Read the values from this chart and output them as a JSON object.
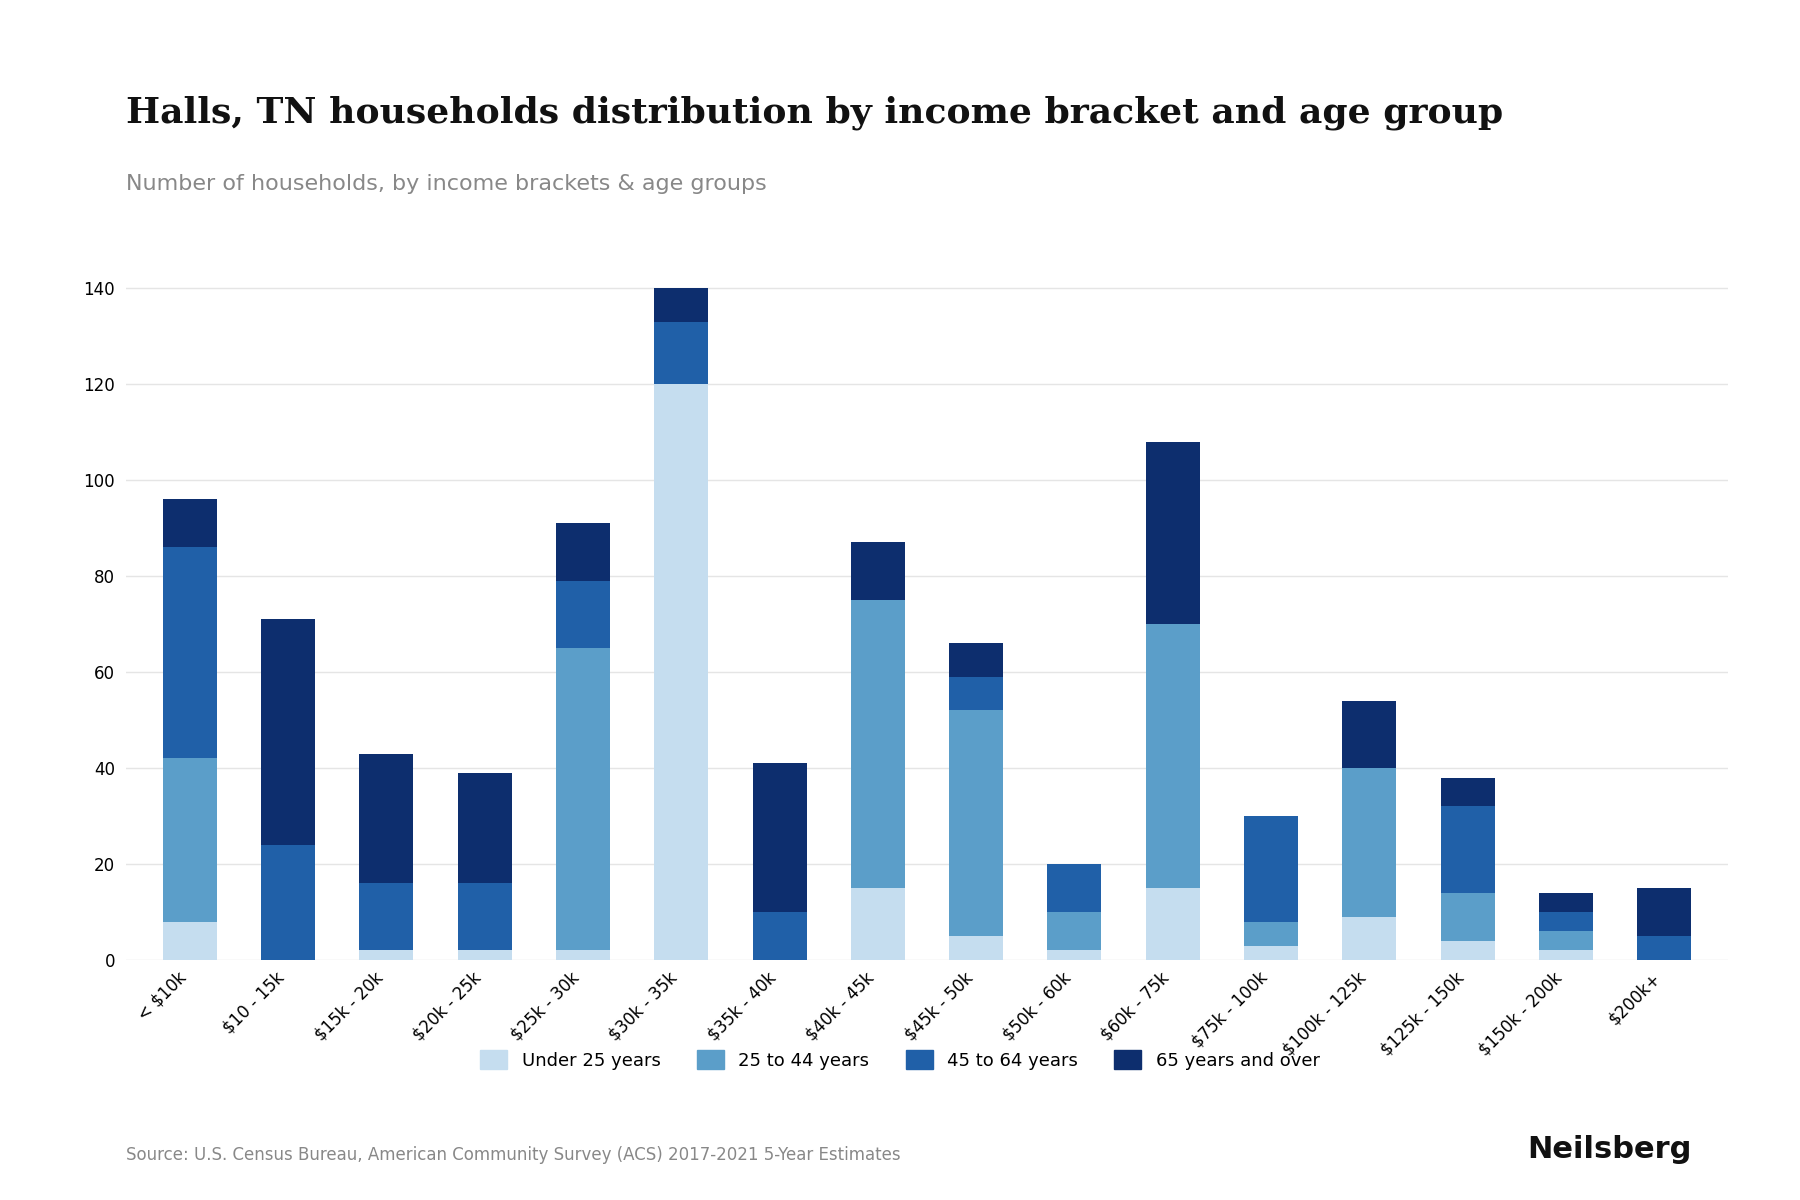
{
  "title": "Halls, TN households distribution by income bracket and age group",
  "subtitle": "Number of households, by income brackets & age groups",
  "source": "Source: U.S. Census Bureau, American Community Survey (ACS) 2017-2021 5-Year Estimates",
  "categories": [
    "< $10k",
    "$10 - 15k",
    "$15k - 20k",
    "$20k - 25k",
    "$25k - 30k",
    "$30k - 35k",
    "$35k - 40k",
    "$40k - 45k",
    "$45k - 50k",
    "$50k - 60k",
    "$60k - 75k",
    "$75k - 100k",
    "$100k - 125k",
    "$125k - 150k",
    "$150k - 200k",
    "$200k+"
  ],
  "age_groups": [
    "Under 25 years",
    "25 to 44 years",
    "45 to 64 years",
    "65 years and over"
  ],
  "colors": [
    "#c5ddef",
    "#5b9ec9",
    "#2060a8",
    "#0d2e6e"
  ],
  "under25": [
    8,
    0,
    2,
    2,
    2,
    120,
    0,
    15,
    5,
    2,
    15,
    3,
    9,
    4,
    2,
    0
  ],
  "age25to44": [
    34,
    0,
    0,
    0,
    63,
    0,
    0,
    60,
    47,
    8,
    55,
    5,
    31,
    10,
    4,
    0
  ],
  "age45to64": [
    44,
    24,
    14,
    14,
    14,
    13,
    10,
    0,
    7,
    10,
    0,
    22,
    0,
    18,
    4,
    5
  ],
  "age65over": [
    10,
    47,
    27,
    23,
    12,
    7,
    31,
    12,
    7,
    0,
    38,
    0,
    14,
    6,
    4,
    10
  ],
  "ylabel": "",
  "ylim": [
    0,
    150
  ],
  "yticks": [
    0,
    20,
    40,
    60,
    80,
    100,
    120,
    140
  ],
  "bar_width": 0.55,
  "background_color": "#ffffff",
  "grid_color": "#e5e5e5",
  "title_fontsize": 26,
  "subtitle_fontsize": 16,
  "tick_fontsize": 12,
  "legend_fontsize": 13,
  "source_fontsize": 12
}
